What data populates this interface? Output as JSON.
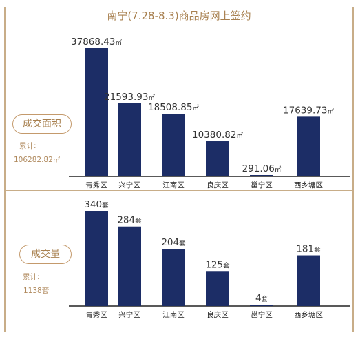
{
  "title": "南宁(7.28-8.3)商品房网上签约",
  "colors": {
    "bar": "#1c2d66",
    "accent": "#a8804f",
    "axis": "#222222",
    "frame": "#c8ad88"
  },
  "chart_data": [
    {
      "type": "bar",
      "name": "成交面积",
      "badge": "成交面积",
      "cumulative_label": "累计:",
      "cumulative_value": "106282.82㎡",
      "categories": [
        "青秀区",
        "兴宁区",
        "江南区",
        "良庆区",
        "邕宁区",
        "西乡塘区"
      ],
      "values": [
        37868.43,
        21593.93,
        18508.85,
        10380.82,
        291.06,
        17639.73
      ],
      "value_labels": [
        "37868.43㎡",
        "21593.93㎡",
        "18508.85㎡",
        "10380.82㎡",
        "291.06㎡",
        "17639.73㎡"
      ],
      "unit": "㎡",
      "ylim": [
        0,
        40000
      ]
    },
    {
      "type": "bar",
      "name": "成交量",
      "badge": "成交量",
      "cumulative_label": "累计:",
      "cumulative_value": "1138套",
      "categories": [
        "青秀区",
        "兴宁区",
        "江南区",
        "良庆区",
        "邕宁区",
        "西乡塘区"
      ],
      "values": [
        340,
        284,
        204,
        125,
        4,
        181
      ],
      "value_labels": [
        "340套",
        "284套",
        "204套",
        "125套",
        "4套",
        "181套"
      ],
      "unit": "套",
      "ylim": [
        0,
        360
      ]
    }
  ]
}
